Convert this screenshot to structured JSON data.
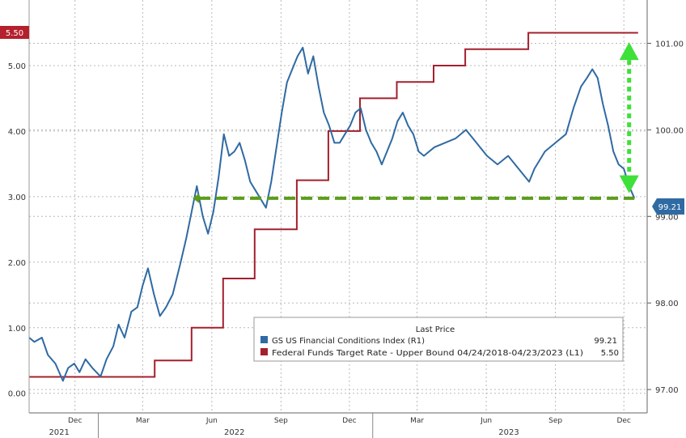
{
  "chart_data": {
    "type": "line",
    "legend": {
      "title": "Last Price",
      "placement": "bottom-right",
      "items": [
        {
          "label": "GS US Financial Conditions Index (R1)",
          "value": "99.21",
          "color": "#2f6aa3"
        },
        {
          "label": "Federal Funds Target Rate - Upper Bound 04/24/2018-04/23/2023 (L1)",
          "value": "5.50",
          "color": "#a3202e"
        }
      ]
    },
    "left_axis": {
      "ticks": [
        "0.00",
        "1.00",
        "2.00",
        "3.00",
        "4.00",
        "5.00"
      ],
      "range": [
        -0.3,
        6.0
      ]
    },
    "right_axis": {
      "ticks": [
        "97.00",
        "98.00",
        "99.00",
        "100.00",
        "101.00"
      ],
      "range": [
        96.73,
        101.5
      ]
    },
    "x_axis": {
      "range": [
        "2021-10-01",
        "2024-01-01"
      ],
      "month_ticks": [
        {
          "date": "2021-12-01",
          "label": "Dec"
        },
        {
          "date": "2022-03-01",
          "label": "Mar"
        },
        {
          "date": "2022-06-01",
          "label": "Jun"
        },
        {
          "date": "2022-09-01",
          "label": "Sep"
        },
        {
          "date": "2022-12-01",
          "label": "Dec"
        },
        {
          "date": "2023-03-01",
          "label": "Mar"
        },
        {
          "date": "2023-06-01",
          "label": "Jun"
        },
        {
          "date": "2023-09-01",
          "label": "Sep"
        },
        {
          "date": "2023-12-01",
          "label": "Dec"
        }
      ],
      "year_labels": [
        {
          "date": "2021-11-10",
          "label": "2021"
        },
        {
          "date": "2022-07-01",
          "label": "2022"
        },
        {
          "date": "2023-07-01",
          "label": "2023"
        }
      ]
    },
    "grid": true,
    "last_value_tags": {
      "left": "5.50",
      "right": "99.21"
    },
    "annotations": [
      {
        "type": "dashed-horizontal",
        "axis": "right",
        "value": 99.21,
        "from": "2022-05-15",
        "to": "2023-12-15",
        "color": "#5a9e1a"
      },
      {
        "type": "double-arrow-vertical",
        "axis": "right",
        "date": "2023-12-08",
        "from": 100.9,
        "to": 99.38,
        "color": "#3ee03a"
      }
    ],
    "series": [
      {
        "name": "Federal Funds Target Rate - Upper Bound",
        "axis": "left",
        "step": true,
        "points": [
          {
            "x": "2021-10-01",
            "y": 0.25
          },
          {
            "x": "2022-03-17",
            "y": 0.5
          },
          {
            "x": "2022-05-05",
            "y": 1.0
          },
          {
            "x": "2022-06-16",
            "y": 1.75
          },
          {
            "x": "2022-07-28",
            "y": 2.5
          },
          {
            "x": "2022-09-22",
            "y": 3.25
          },
          {
            "x": "2022-11-03",
            "y": 4.0
          },
          {
            "x": "2022-12-15",
            "y": 4.5
          },
          {
            "x": "2023-02-02",
            "y": 4.75
          },
          {
            "x": "2023-03-23",
            "y": 5.0
          },
          {
            "x": "2023-05-04",
            "y": 5.25
          },
          {
            "x": "2023-07-27",
            "y": 5.5
          },
          {
            "x": "2023-12-20",
            "y": 5.5
          }
        ]
      },
      {
        "name": "GS US Financial Conditions Index",
        "axis": "right",
        "points": [
          {
            "x": "2021-10-01",
            "y": 97.6
          },
          {
            "x": "2021-10-08",
            "y": 97.55
          },
          {
            "x": "2021-10-18",
            "y": 97.6
          },
          {
            "x": "2021-10-26",
            "y": 97.4
          },
          {
            "x": "2021-11-05",
            "y": 97.3
          },
          {
            "x": "2021-11-15",
            "y": 97.1
          },
          {
            "x": "2021-11-22",
            "y": 97.25
          },
          {
            "x": "2021-11-30",
            "y": 97.3
          },
          {
            "x": "2021-12-07",
            "y": 97.2
          },
          {
            "x": "2021-12-15",
            "y": 97.35
          },
          {
            "x": "2021-12-24",
            "y": 97.25
          },
          {
            "x": "2022-01-04",
            "y": 97.15
          },
          {
            "x": "2022-01-12",
            "y": 97.35
          },
          {
            "x": "2022-01-21",
            "y": 97.5
          },
          {
            "x": "2022-01-28",
            "y": 97.75
          },
          {
            "x": "2022-02-05",
            "y": 97.6
          },
          {
            "x": "2022-02-14",
            "y": 97.9
          },
          {
            "x": "2022-02-22",
            "y": 97.95
          },
          {
            "x": "2022-03-01",
            "y": 98.2
          },
          {
            "x": "2022-03-08",
            "y": 98.4
          },
          {
            "x": "2022-03-16",
            "y": 98.1
          },
          {
            "x": "2022-03-24",
            "y": 97.85
          },
          {
            "x": "2022-04-01",
            "y": 97.95
          },
          {
            "x": "2022-04-10",
            "y": 98.1
          },
          {
            "x": "2022-04-20",
            "y": 98.45
          },
          {
            "x": "2022-04-28",
            "y": 98.75
          },
          {
            "x": "2022-05-05",
            "y": 99.05
          },
          {
            "x": "2022-05-12",
            "y": 99.35
          },
          {
            "x": "2022-05-20",
            "y": 99.0
          },
          {
            "x": "2022-05-27",
            "y": 98.8
          },
          {
            "x": "2022-06-03",
            "y": 99.05
          },
          {
            "x": "2022-06-10",
            "y": 99.45
          },
          {
            "x": "2022-06-17",
            "y": 99.95
          },
          {
            "x": "2022-06-24",
            "y": 99.7
          },
          {
            "x": "2022-07-01",
            "y": 99.75
          },
          {
            "x": "2022-07-08",
            "y": 99.85
          },
          {
            "x": "2022-07-15",
            "y": 99.65
          },
          {
            "x": "2022-07-22",
            "y": 99.4
          },
          {
            "x": "2022-07-29",
            "y": 99.3
          },
          {
            "x": "2022-08-05",
            "y": 99.2
          },
          {
            "x": "2022-08-12",
            "y": 99.1
          },
          {
            "x": "2022-08-19",
            "y": 99.4
          },
          {
            "x": "2022-08-26",
            "y": 99.8
          },
          {
            "x": "2022-09-02",
            "y": 100.2
          },
          {
            "x": "2022-09-09",
            "y": 100.55
          },
          {
            "x": "2022-09-16",
            "y": 100.7
          },
          {
            "x": "2022-09-23",
            "y": 100.85
          },
          {
            "x": "2022-09-30",
            "y": 100.95
          },
          {
            "x": "2022-10-07",
            "y": 100.65
          },
          {
            "x": "2022-10-14",
            "y": 100.85
          },
          {
            "x": "2022-10-21",
            "y": 100.5
          },
          {
            "x": "2022-10-28",
            "y": 100.2
          },
          {
            "x": "2022-11-04",
            "y": 100.05
          },
          {
            "x": "2022-11-11",
            "y": 99.85
          },
          {
            "x": "2022-11-18",
            "y": 99.85
          },
          {
            "x": "2022-11-25",
            "y": 99.95
          },
          {
            "x": "2022-12-02",
            "y": 100.05
          },
          {
            "x": "2022-12-09",
            "y": 100.2
          },
          {
            "x": "2022-12-16",
            "y": 100.25
          },
          {
            "x": "2022-12-23",
            "y": 100.0
          },
          {
            "x": "2022-12-30",
            "y": 99.85
          },
          {
            "x": "2023-01-06",
            "y": 99.75
          },
          {
            "x": "2023-01-13",
            "y": 99.6
          },
          {
            "x": "2023-01-20",
            "y": 99.75
          },
          {
            "x": "2023-01-27",
            "y": 99.9
          },
          {
            "x": "2023-02-03",
            "y": 100.1
          },
          {
            "x": "2023-02-10",
            "y": 100.2
          },
          {
            "x": "2023-02-17",
            "y": 100.05
          },
          {
            "x": "2023-02-24",
            "y": 99.95
          },
          {
            "x": "2023-03-03",
            "y": 99.75
          },
          {
            "x": "2023-03-10",
            "y": 99.7
          },
          {
            "x": "2023-03-17",
            "y": 99.75
          },
          {
            "x": "2023-03-24",
            "y": 99.8
          },
          {
            "x": "2023-04-07",
            "y": 99.85
          },
          {
            "x": "2023-04-21",
            "y": 99.9
          },
          {
            "x": "2023-05-05",
            "y": 100.0
          },
          {
            "x": "2023-05-19",
            "y": 99.85
          },
          {
            "x": "2023-06-02",
            "y": 99.7
          },
          {
            "x": "2023-06-16",
            "y": 99.6
          },
          {
            "x": "2023-06-30",
            "y": 99.7
          },
          {
            "x": "2023-07-14",
            "y": 99.55
          },
          {
            "x": "2023-07-28",
            "y": 99.4
          },
          {
            "x": "2023-08-04",
            "y": 99.55
          },
          {
            "x": "2023-08-18",
            "y": 99.75
          },
          {
            "x": "2023-09-01",
            "y": 99.85
          },
          {
            "x": "2023-09-15",
            "y": 99.95
          },
          {
            "x": "2023-09-25",
            "y": 100.25
          },
          {
            "x": "2023-10-05",
            "y": 100.5
          },
          {
            "x": "2023-10-13",
            "y": 100.6
          },
          {
            "x": "2023-10-20",
            "y": 100.7
          },
          {
            "x": "2023-10-27",
            "y": 100.6
          },
          {
            "x": "2023-11-03",
            "y": 100.3
          },
          {
            "x": "2023-11-10",
            "y": 100.05
          },
          {
            "x": "2023-11-17",
            "y": 99.75
          },
          {
            "x": "2023-11-24",
            "y": 99.6
          },
          {
            "x": "2023-12-01",
            "y": 99.55
          },
          {
            "x": "2023-12-08",
            "y": 99.35
          },
          {
            "x": "2023-12-15",
            "y": 99.21
          }
        ]
      }
    ]
  }
}
